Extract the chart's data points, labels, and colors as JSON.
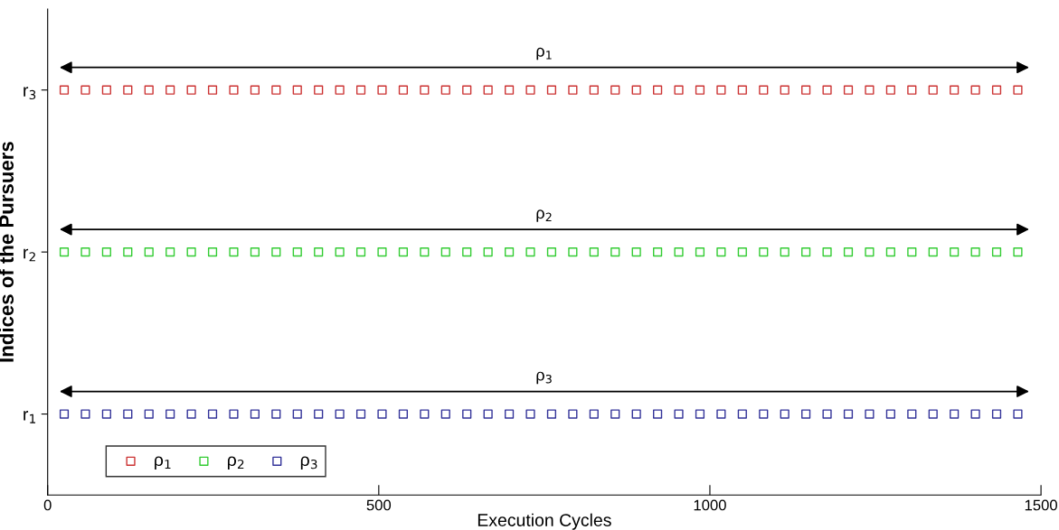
{
  "chart_data": {
    "type": "scatter",
    "xlabel": "Execution Cycles",
    "ylabel": "Indices of the Pursuers",
    "x": [
      25,
      57,
      89,
      121,
      153,
      185,
      217,
      249,
      281,
      313,
      345,
      377,
      409,
      441,
      473,
      505,
      537,
      569,
      601,
      633,
      665,
      697,
      729,
      761,
      793,
      825,
      857,
      889,
      921,
      953,
      985,
      1017,
      1049,
      1081,
      1113,
      1145,
      1177,
      1209,
      1241,
      1273,
      1305,
      1337,
      1369,
      1401,
      1433,
      1465
    ],
    "series": [
      {
        "name": "ρ$_{1}$",
        "color": "#cc3333",
        "values": [
          3,
          3,
          3,
          3,
          3,
          3,
          3,
          3,
          3,
          3,
          3,
          3,
          3,
          3,
          3,
          3,
          3,
          3,
          3,
          3,
          3,
          3,
          3,
          3,
          3,
          3,
          3,
          3,
          3,
          3,
          3,
          3,
          3,
          3,
          3,
          3,
          3,
          3,
          3,
          3,
          3,
          3,
          3,
          3,
          3,
          3
        ]
      },
      {
        "name": "ρ$_{2}$",
        "color": "#33cc33",
        "values": [
          2,
          2,
          2,
          2,
          2,
          2,
          2,
          2,
          2,
          2,
          2,
          2,
          2,
          2,
          2,
          2,
          2,
          2,
          2,
          2,
          2,
          2,
          2,
          2,
          2,
          2,
          2,
          2,
          2,
          2,
          2,
          2,
          2,
          2,
          2,
          2,
          2,
          2,
          2,
          2,
          2,
          2,
          2,
          2,
          2,
          2
        ]
      },
      {
        "name": "ρ$_{3}$",
        "color": "#333399",
        "values": [
          1,
          1,
          1,
          1,
          1,
          1,
          1,
          1,
          1,
          1,
          1,
          1,
          1,
          1,
          1,
          1,
          1,
          1,
          1,
          1,
          1,
          1,
          1,
          1,
          1,
          1,
          1,
          1,
          1,
          1,
          1,
          1,
          1,
          1,
          1,
          1,
          1,
          1,
          1,
          1,
          1,
          1,
          1,
          1,
          1,
          1
        ]
      }
    ],
    "xlim": [
      0,
      1500
    ],
    "xticks": [
      0,
      500,
      1000,
      1500
    ],
    "ylim": [
      0.5,
      3.5
    ],
    "yticks": [
      {
        "value": 1,
        "label": "r$_{1}$"
      },
      {
        "value": 2,
        "label": "r$_{2}$"
      },
      {
        "value": 3,
        "label": "r$_{3}$"
      }
    ],
    "annotations": [
      "ρ$_{1}$",
      "ρ$_{2}$",
      "ρ$_{3}$"
    ],
    "marker": "square",
    "legend": "bottom left",
    "grid": false
  }
}
